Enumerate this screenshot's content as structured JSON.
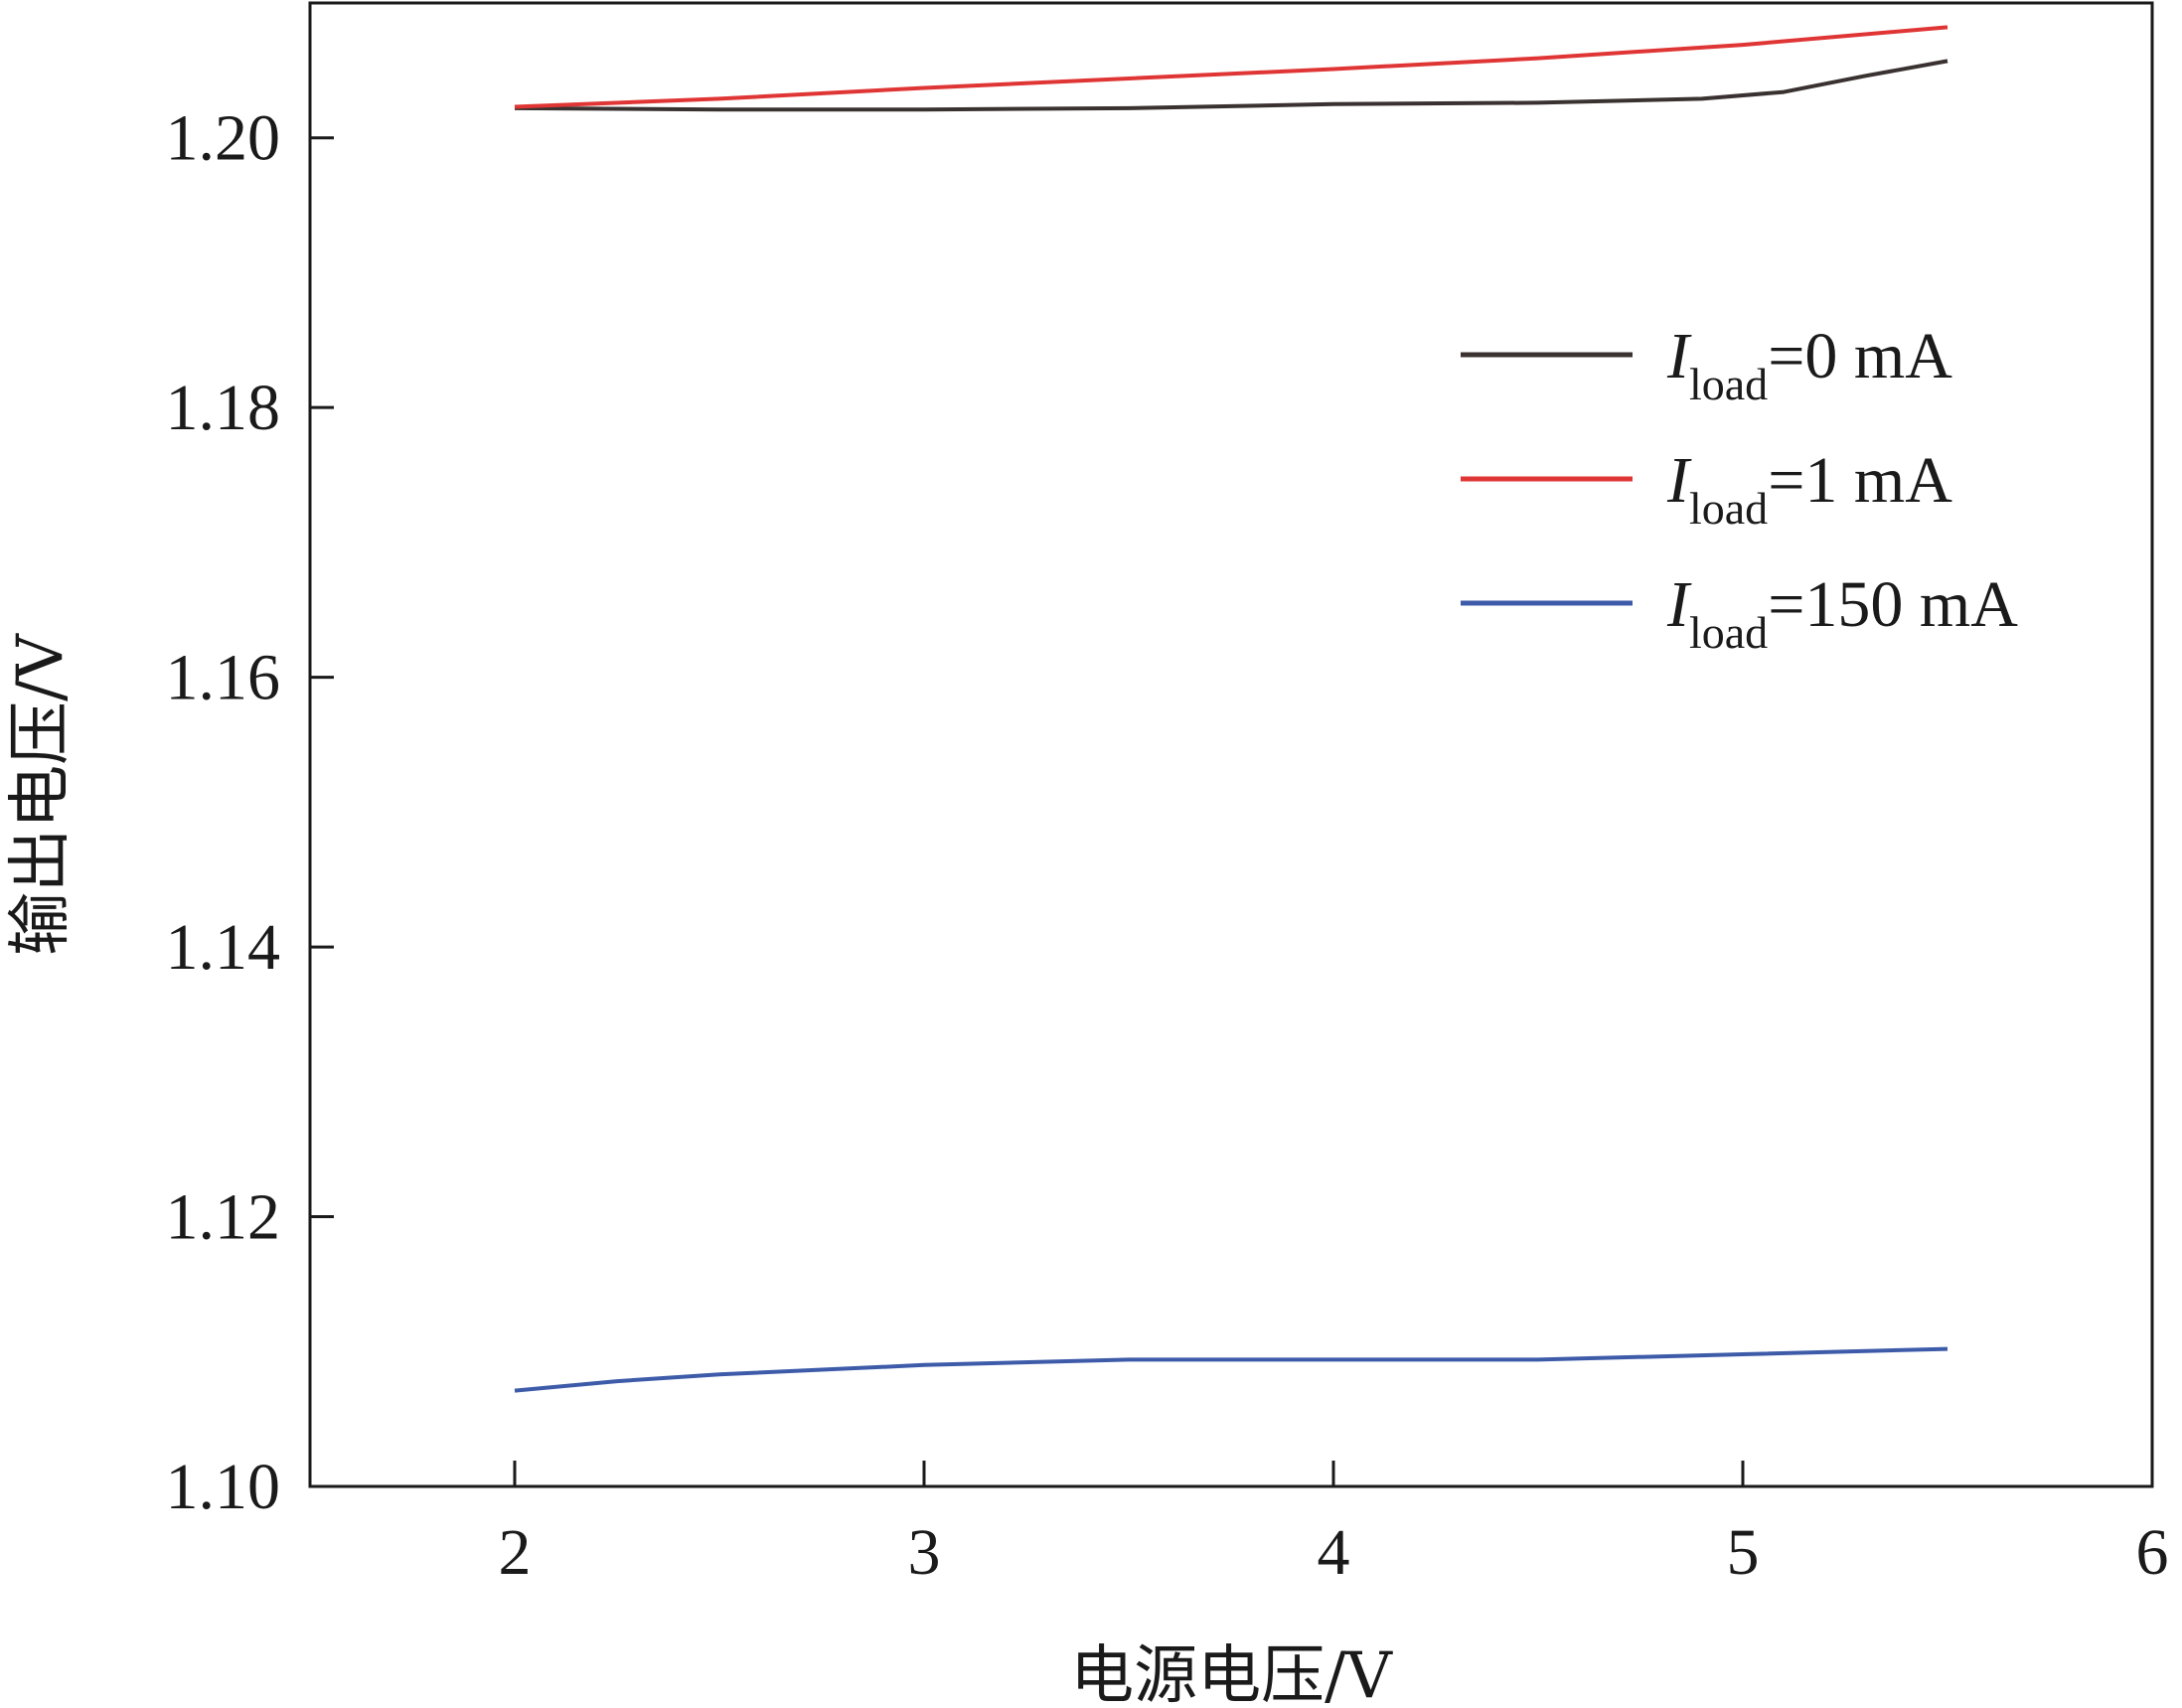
{
  "chart_data": {
    "type": "line",
    "xlabel": "电源电压/V",
    "ylabel": "输出电压/V",
    "xlim": [
      1.5,
      6
    ],
    "ylim": [
      1.1,
      1.21
    ],
    "x_ticks": [
      2,
      3,
      4,
      5,
      6
    ],
    "x_tick_labels": [
      "2",
      "3",
      "4",
      "5",
      "6"
    ],
    "y_ticks": [
      1.1,
      1.12,
      1.14,
      1.16,
      1.18,
      1.2
    ],
    "y_tick_labels": [
      "1.10",
      "1.12",
      "1.14",
      "1.16",
      "1.18",
      "1.20"
    ],
    "grid": false,
    "legend_position": "upper-right",
    "series": [
      {
        "name": "I_load=0 mA",
        "legend": {
          "symbol": "I",
          "sub": "load",
          "rest": "=0 mA"
        },
        "color": "#3a3230",
        "x": [
          2.0,
          2.5,
          3.0,
          3.5,
          4.0,
          4.5,
          4.9,
          5.1,
          5.3,
          5.5
        ],
        "y": [
          1.2022,
          1.2021,
          1.2021,
          1.2022,
          1.2025,
          1.2026,
          1.2029,
          1.2034,
          1.2046,
          1.2057
        ]
      },
      {
        "name": "I_load=1 mA",
        "legend": {
          "symbol": "I",
          "sub": "load",
          "rest": "=1 mA"
        },
        "color": "#e03535",
        "x": [
          2.0,
          2.5,
          3.0,
          3.5,
          4.0,
          4.5,
          5.0,
          5.5
        ],
        "y": [
          1.2023,
          1.2029,
          1.2037,
          1.2044,
          1.2051,
          1.2059,
          1.2069,
          1.2082
        ]
      },
      {
        "name": "I_load=150 mA",
        "legend": {
          "symbol": "I",
          "sub": "load",
          "rest": "=150 mA"
        },
        "color": "#3d5ba8",
        "x": [
          2.0,
          2.25,
          2.5,
          3.0,
          3.5,
          4.0,
          4.5,
          5.0,
          5.5
        ],
        "y": [
          1.1071,
          1.1078,
          1.1083,
          1.109,
          1.1094,
          1.1094,
          1.1094,
          1.1098,
          1.1102
        ]
      }
    ]
  }
}
